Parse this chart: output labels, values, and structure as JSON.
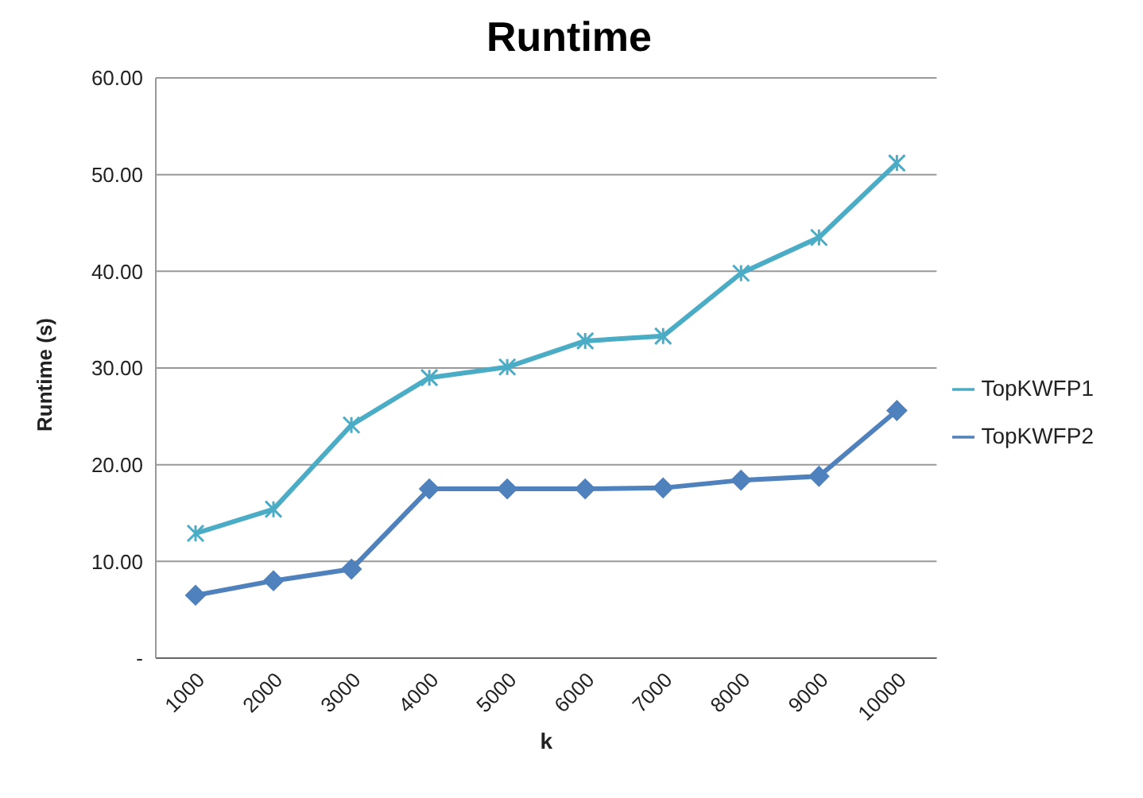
{
  "chart_data": {
    "type": "line",
    "title": "Runtime",
    "xlabel": "k",
    "ylabel": "Runtime (s)",
    "categories": [
      "1000",
      "2000",
      "3000",
      "4000",
      "5000",
      "6000",
      "7000",
      "8000",
      "9000",
      "10000"
    ],
    "series": [
      {
        "name": "TopKWFP1",
        "color": "#4bacc6",
        "marker": "cross",
        "values": [
          12.9,
          15.4,
          24.1,
          29.0,
          30.1,
          32.8,
          33.3,
          39.8,
          43.5,
          51.2
        ]
      },
      {
        "name": "TopKWFP2",
        "color": "#4f81bd",
        "marker": "diamond",
        "values": [
          6.5,
          8.0,
          9.2,
          17.5,
          17.5,
          17.5,
          17.6,
          18.4,
          18.8,
          25.6
        ]
      }
    ],
    "ylim": [
      0,
      60
    ],
    "yticks": [
      {
        "value": 0,
        "label": "-"
      },
      {
        "value": 10,
        "label": "10.00"
      },
      {
        "value": 20,
        "label": "20.00"
      },
      {
        "value": 30,
        "label": "30.00"
      },
      {
        "value": 40,
        "label": "40.00"
      },
      {
        "value": 50,
        "label": "50.00"
      },
      {
        "value": 60,
        "label": "60.00"
      }
    ],
    "grid": "y",
    "legend": "right",
    "line_style": "solid"
  }
}
